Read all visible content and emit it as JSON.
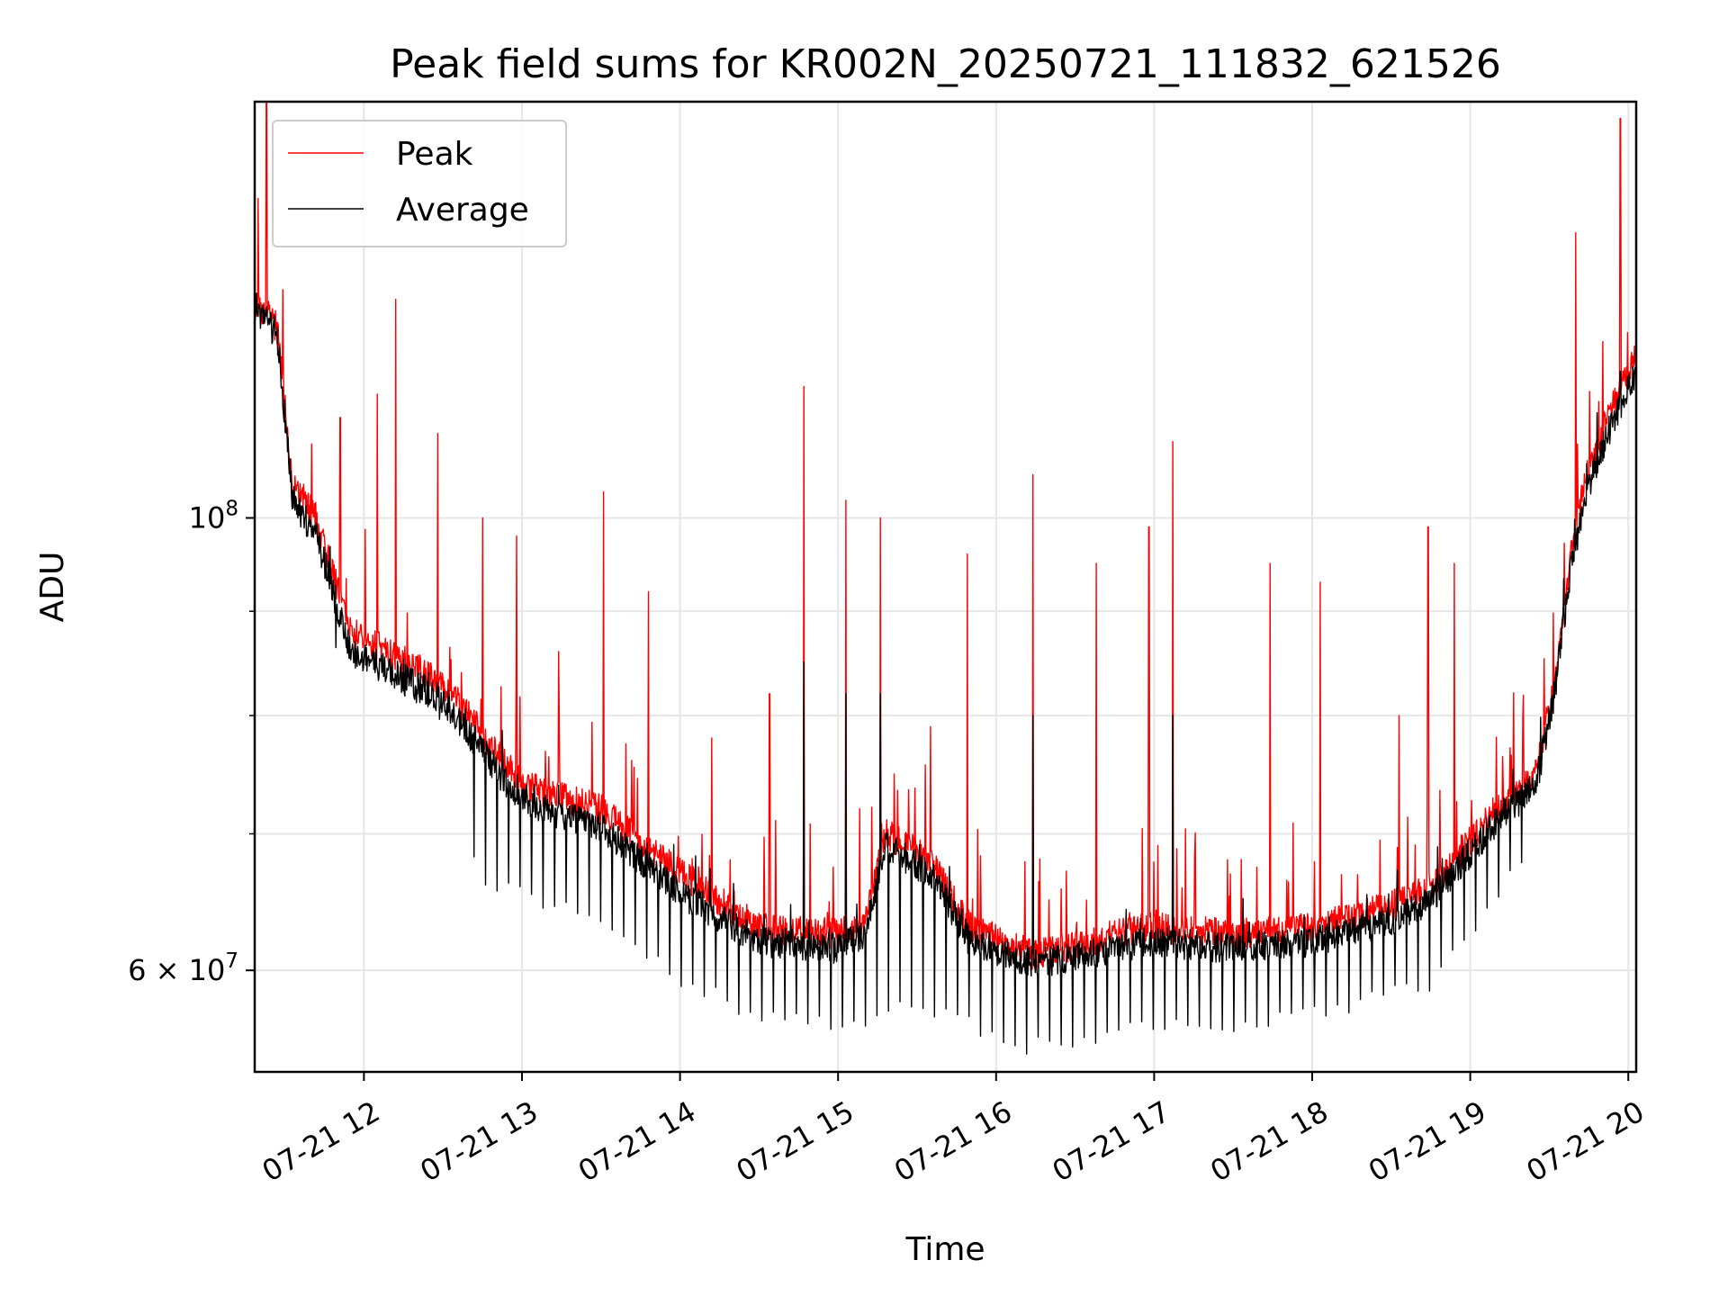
{
  "chart_data": {
    "type": "line",
    "title": "Peak field sums for KR002N_20250721_111832_621526",
    "xlabel": "Time",
    "ylabel": "ADU",
    "yscale": "log",
    "ylim": [
      53500000,
      160000000
    ],
    "xlim": [
      "2025-07-21 11:18:32",
      "2025-07-21 20:03:00"
    ],
    "grid": true,
    "legend_position": "upper-left",
    "x_ticks": [
      {
        "value": "2025-07-21 12:00",
        "label": "07-21 12"
      },
      {
        "value": "2025-07-21 13:00",
        "label": "07-21 13"
      },
      {
        "value": "2025-07-21 14:00",
        "label": "07-21 14"
      },
      {
        "value": "2025-07-21 15:00",
        "label": "07-21 15"
      },
      {
        "value": "2025-07-21 16:00",
        "label": "07-21 16"
      },
      {
        "value": "2025-07-21 17:00",
        "label": "07-21 17"
      },
      {
        "value": "2025-07-21 18:00",
        "label": "07-21 18"
      },
      {
        "value": "2025-07-21 19:00",
        "label": "07-21 19"
      },
      {
        "value": "2025-07-21 20:00",
        "label": "07-21 20"
      }
    ],
    "y_ticks": [
      {
        "value": 100000000,
        "base": "10",
        "exp": "8",
        "type": "major"
      },
      {
        "value": 60000000,
        "base": "6 × 10",
        "exp": "7",
        "type": "major"
      },
      {
        "value": 70000000,
        "type": "minor"
      },
      {
        "value": 80000000,
        "type": "minor"
      },
      {
        "value": 90000000,
        "type": "minor"
      }
    ],
    "series": [
      {
        "name": "Peak",
        "color": "#ff0000",
        "baseline": [
          [
            "2025-07-21 11:18:32",
            128000000
          ],
          [
            "2025-07-21 11:27",
            124000000
          ],
          [
            "2025-07-21 11:33",
            104000000
          ],
          [
            "2025-07-21 11:42",
            100000000
          ],
          [
            "2025-07-21 11:55",
            88000000
          ],
          [
            "2025-07-21 12:30",
            83000000
          ],
          [
            "2025-07-21 13:00",
            74000000
          ],
          [
            "2025-07-21 13:30",
            72000000
          ],
          [
            "2025-07-21 14:00",
            67000000
          ],
          [
            "2025-07-21 14:30",
            63000000
          ],
          [
            "2025-07-21 15:00",
            62500000
          ],
          [
            "2025-07-21 15:10",
            63500000
          ],
          [
            "2025-07-21 15:18",
            70000000
          ],
          [
            "2025-07-21 15:35",
            68000000
          ],
          [
            "2025-07-21 15:50",
            63000000
          ],
          [
            "2025-07-21 16:15",
            61000000
          ],
          [
            "2025-07-21 16:45",
            62500000
          ],
          [
            "2025-07-21 17:00",
            63000000
          ],
          [
            "2025-07-21 17:30",
            62500000
          ],
          [
            "2025-07-21 18:00",
            63000000
          ],
          [
            "2025-07-21 18:30",
            64500000
          ],
          [
            "2025-07-21 18:45",
            66000000
          ],
          [
            "2025-07-21 19:10",
            72000000
          ],
          [
            "2025-07-21 19:25",
            75000000
          ],
          [
            "2025-07-21 19:32",
            83000000
          ],
          [
            "2025-07-21 19:38",
            96000000
          ],
          [
            "2025-07-21 19:44",
            105000000
          ],
          [
            "2025-07-21 19:52",
            112000000
          ],
          [
            "2025-07-21 20:03",
            120000000
          ]
        ],
        "spikes": [
          [
            "2025-07-21 11:23",
            160000000
          ],
          [
            "2025-07-21 11:51",
            112000000
          ],
          [
            "2025-07-21 12:05",
            115000000
          ],
          [
            "2025-07-21 12:12",
            128000000
          ],
          [
            "2025-07-21 12:28",
            110000000
          ],
          [
            "2025-07-21 12:45",
            100000000
          ],
          [
            "2025-07-21 12:58",
            98000000
          ],
          [
            "2025-07-21 13:14",
            86000000
          ],
          [
            "2025-07-21 13:31",
            103000000
          ],
          [
            "2025-07-21 13:48",
            92000000
          ],
          [
            "2025-07-21 14:12",
            78000000
          ],
          [
            "2025-07-21 14:34",
            82000000
          ],
          [
            "2025-07-21 14:47",
            116000000
          ],
          [
            "2025-07-21 15:03",
            102000000
          ],
          [
            "2025-07-21 15:16",
            100000000
          ],
          [
            "2025-07-21 15:35",
            79000000
          ],
          [
            "2025-07-21 15:49",
            96000000
          ],
          [
            "2025-07-21 16:14",
            105000000
          ],
          [
            "2025-07-21 16:38",
            95000000
          ],
          [
            "2025-07-21 16:58",
            99000000
          ],
          [
            "2025-07-21 17:07",
            109000000
          ],
          [
            "2025-07-21 17:44",
            95000000
          ],
          [
            "2025-07-21 18:03",
            93000000
          ],
          [
            "2025-07-21 18:33",
            80000000
          ],
          [
            "2025-07-21 18:44",
            99000000
          ],
          [
            "2025-07-21 18:54",
            95000000
          ],
          [
            "2025-07-21 19:40",
            138000000
          ],
          [
            "2025-07-21 19:57",
            157000000
          ]
        ]
      },
      {
        "name": "Average",
        "color": "#000000",
        "baseline": [
          [
            "2025-07-21 11:18:32",
            127000000
          ],
          [
            "2025-07-21 11:27",
            123000000
          ],
          [
            "2025-07-21 11:33",
            102000000
          ],
          [
            "2025-07-21 11:42",
            98000000
          ],
          [
            "2025-07-21 11:55",
            86000000
          ],
          [
            "2025-07-21 12:30",
            81500000
          ],
          [
            "2025-07-21 13:00",
            72500000
          ],
          [
            "2025-07-21 13:30",
            70500000
          ],
          [
            "2025-07-21 14:00",
            65500000
          ],
          [
            "2025-07-21 14:30",
            62000000
          ],
          [
            "2025-07-21 15:00",
            61500000
          ],
          [
            "2025-07-21 15:10",
            62500000
          ],
          [
            "2025-07-21 15:18",
            69000000
          ],
          [
            "2025-07-21 15:35",
            67000000
          ],
          [
            "2025-07-21 15:50",
            62000000
          ],
          [
            "2025-07-21 16:15",
            60500000
          ],
          [
            "2025-07-21 16:45",
            61500000
          ],
          [
            "2025-07-21 17:00",
            62000000
          ],
          [
            "2025-07-21 17:30",
            61500000
          ],
          [
            "2025-07-21 18:00",
            62000000
          ],
          [
            "2025-07-21 18:30",
            63500000
          ],
          [
            "2025-07-21 18:45",
            65000000
          ],
          [
            "2025-07-21 19:10",
            71000000
          ],
          [
            "2025-07-21 19:25",
            74000000
          ],
          [
            "2025-07-21 19:32",
            82000000
          ],
          [
            "2025-07-21 19:38",
            94000000
          ],
          [
            "2025-07-21 19:44",
            103000000
          ],
          [
            "2025-07-21 19:52",
            110000000
          ],
          [
            "2025-07-21 20:03",
            118000000
          ]
        ],
        "spikes": [
          [
            "2025-07-21 14:47",
            85000000
          ],
          [
            "2025-07-21 15:03",
            82000000
          ],
          [
            "2025-07-21 15:16",
            82000000
          ],
          [
            "2025-07-21 16:14",
            80000000
          ],
          [
            "2025-07-21 17:07",
            80000000
          ],
          [
            "2025-07-21 19:57",
            118000000
          ]
        ],
        "dip_band": [
          [
            "2025-07-21 11:45",
            88000000
          ],
          [
            "2025-07-21 12:40",
            78000000
          ],
          [
            "2025-07-21 12:42",
            66500000
          ],
          [
            "2025-07-21 13:30",
            63500000
          ],
          [
            "2025-07-21 14:00",
            59500000
          ],
          [
            "2025-07-21 14:30",
            57000000
          ],
          [
            "2025-07-21 15:10",
            56500000
          ],
          [
            "2025-07-21 15:30",
            58000000
          ],
          [
            "2025-07-21 16:10",
            55000000
          ],
          [
            "2025-07-21 16:45",
            56000000
          ],
          [
            "2025-07-21 17:30",
            56500000
          ],
          [
            "2025-07-21 18:10",
            57500000
          ],
          [
            "2025-07-21 18:45",
            59000000
          ],
          [
            "2025-07-21 19:20",
            68000000
          ]
        ]
      }
    ]
  }
}
